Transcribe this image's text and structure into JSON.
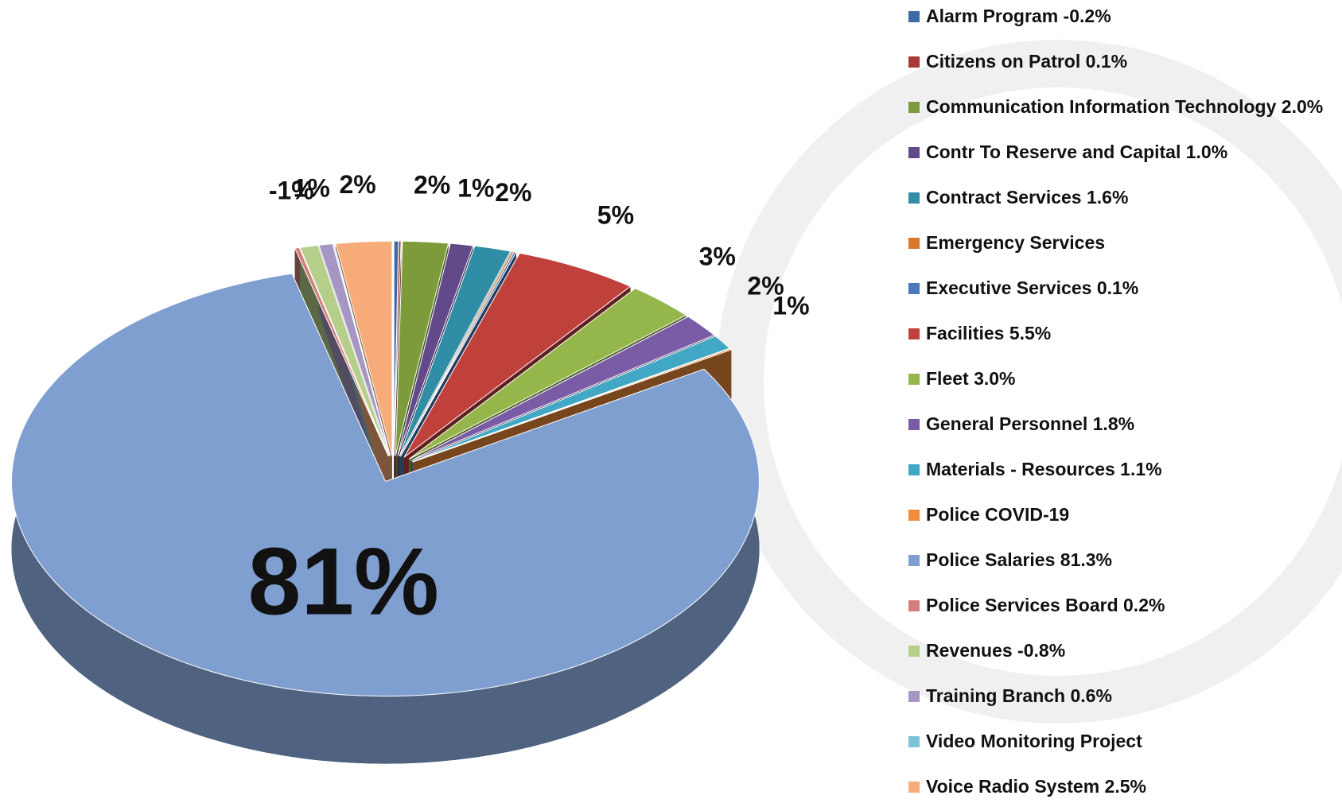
{
  "chart_data": {
    "type": "pie",
    "categories": [
      "Alarm Program -0.2%",
      "Citizens on Patrol 0.1%",
      "Communication Information Technology 2.0%",
      "Contr To Reserve and Capital 1.0%",
      "Contract Services 1.6%",
      "Emergency Services",
      "Executive Services 0.1%",
      "Facilities 5.5%",
      "Fleet 3.0%",
      "General Personnel 1.8%",
      "Materials - Resources 1.1%",
      "Police COVID-19",
      "Police Salaries  81.3%",
      "Police Services Board 0.2%",
      "Revenues -0.8%",
      "Training Branch 0.6%",
      "Video Monitoring Project",
      "Voice Radio System 2.5%"
    ],
    "values": [
      -0.2,
      0.1,
      2.0,
      1.0,
      1.6,
      0.1,
      0.1,
      5.45,
      3.0,
      1.8,
      1.1,
      0.1,
      81.3,
      0.2,
      -0.8,
      0.6,
      0.05,
      2.45
    ],
    "value_labels": [
      null,
      null,
      "2%",
      "1%",
      "2%",
      null,
      null,
      "5%",
      "3%",
      "2%",
      "1%",
      null,
      "81%",
      null,
      "-1%",
      "1%",
      null,
      "2%"
    ],
    "colors": [
      "#3d6aa5",
      "#a83a38",
      "#7d9b3a",
      "#62498a",
      "#2f8ea6",
      "#d9782a",
      "#4a78b8",
      "#c0403c",
      "#94b64a",
      "#7a5ca6",
      "#40a8c4",
      "#f08c3a",
      "#7f9fd0",
      "#d67e7c",
      "#b5cf8a",
      "#a596c4",
      "#7cc4d8",
      "#f7ab78"
    ],
    "legend": "right"
  }
}
